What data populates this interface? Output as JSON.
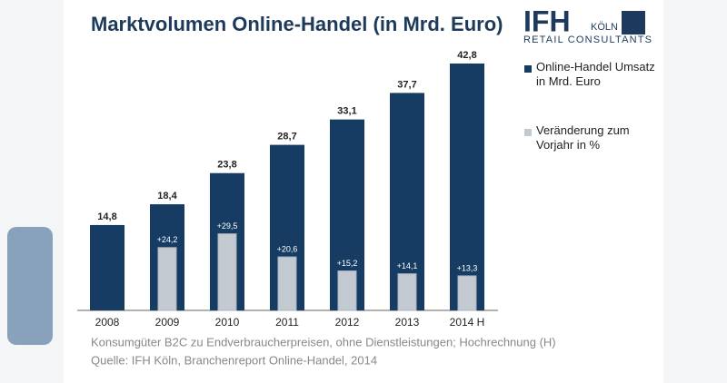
{
  "chart_data": {
    "type": "bar",
    "title": "Marktvolumen Online-Handel (in Mrd. Euro)",
    "categories": [
      "2008",
      "2009",
      "2010",
      "2011",
      "2012",
      "2013",
      "2014 H"
    ],
    "series": [
      {
        "name": "Online-Handel Umsatz in Mrd. Euro",
        "color": "#173c63",
        "values": [
          14.8,
          18.4,
          23.8,
          28.7,
          33.1,
          37.7,
          42.8
        ],
        "value_labels": [
          "14,8",
          "18,4",
          "23,8",
          "28,7",
          "33,1",
          "37,7",
          "42,8"
        ]
      },
      {
        "name": "Veränderung zum Vorjahr in %",
        "color": "#c3c9d1",
        "axis": "y2",
        "values": [
          null,
          24.2,
          29.5,
          20.6,
          15.2,
          14.1,
          13.3
        ],
        "value_labels": [
          null,
          "+24,2",
          "+29,5",
          "+20,6",
          "+15,2",
          "+14,1",
          "+13,3"
        ]
      }
    ],
    "ylim": [
      0,
      45
    ],
    "y2lim": [
      0,
      100
    ],
    "notes": [
      "Konsumgüter B2C zu Endverbraucherpreisen, ohne Dienstleistungen; Hochrechnung (H)",
      "Quelle: IFH Köln, Branchenreport Online-Handel, 2014"
    ]
  },
  "logo": {
    "name": "IFH",
    "city": "KÖLN",
    "tagline": "RETAIL CONSULTANTS"
  }
}
